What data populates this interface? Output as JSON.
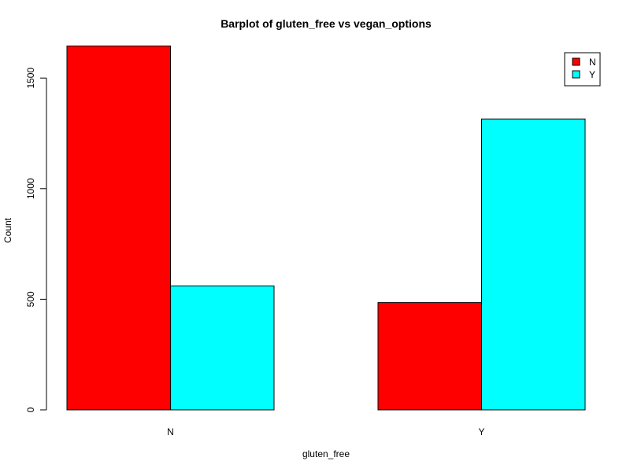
{
  "chart_data": {
    "type": "bar",
    "title": "Barplot of gluten_free vs vegan_options",
    "xlabel": "gluten_free",
    "ylabel": "Count",
    "categories": [
      "N",
      "Y"
    ],
    "series": [
      {
        "name": "N",
        "color": "#ff0000",
        "values": [
          1645,
          485
        ]
      },
      {
        "name": "Y",
        "color": "#00ffff",
        "values": [
          560,
          1315
        ]
      }
    ],
    "ylim": [
      0,
      1645
    ],
    "yticks": [
      0,
      500,
      1000,
      1500
    ],
    "grid": false,
    "legend_position": "top-right",
    "bar_mode": "grouped"
  }
}
